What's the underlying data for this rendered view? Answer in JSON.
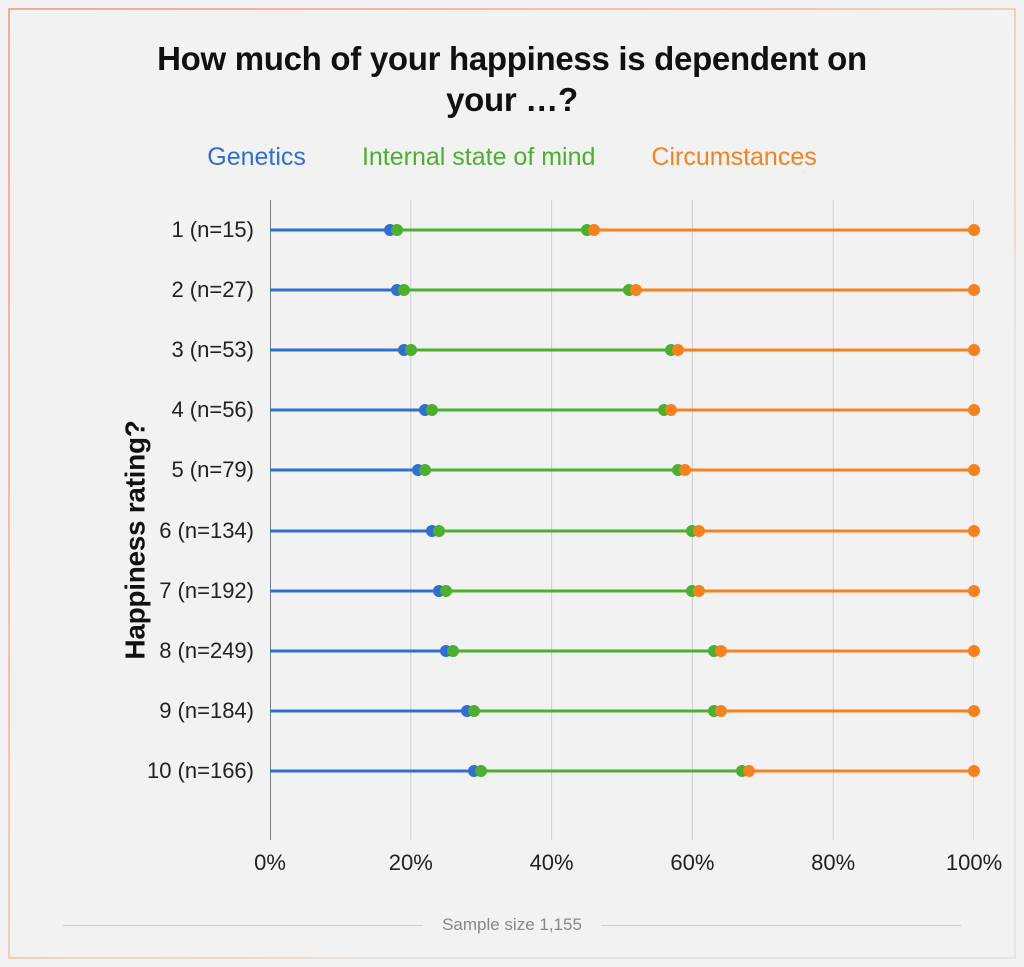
{
  "title": "How much of your happiness is dependent on your …?",
  "ylabel": "Happiness rating?",
  "sample_note": "Sample size 1,155",
  "series": [
    {
      "key": "genetics",
      "label": "Genetics",
      "color": "#2f6fd0"
    },
    {
      "key": "internal",
      "label": "Internal state of mind",
      "color": "#4caf2f"
    },
    {
      "key": "circumstances",
      "label": "Circumstances",
      "color": "#f58220"
    }
  ],
  "xaxis": {
    "min": 0,
    "max": 100,
    "ticks": [
      0,
      20,
      40,
      60,
      80,
      100
    ],
    "tick_labels": [
      "0%",
      "20%",
      "40%",
      "60%",
      "80%",
      "100%"
    ]
  },
  "rows": [
    {
      "label": "1 (n=15)",
      "n": 15,
      "rating": 1,
      "cum": [
        17,
        45,
        100
      ]
    },
    {
      "label": "2 (n=27)",
      "n": 27,
      "rating": 2,
      "cum": [
        18,
        51,
        100
      ]
    },
    {
      "label": "3 (n=53)",
      "n": 53,
      "rating": 3,
      "cum": [
        19,
        57,
        100
      ]
    },
    {
      "label": "4 (n=56)",
      "n": 56,
      "rating": 4,
      "cum": [
        22,
        56,
        100
      ]
    },
    {
      "label": "5 (n=79)",
      "n": 79,
      "rating": 5,
      "cum": [
        21,
        58,
        100
      ]
    },
    {
      "label": "6 (n=134)",
      "n": 134,
      "rating": 6,
      "cum": [
        23,
        60,
        100
      ]
    },
    {
      "label": "7 (n=192)",
      "n": 192,
      "rating": 7,
      "cum": [
        24,
        60,
        100
      ]
    },
    {
      "label": "8 (n=249)",
      "n": 249,
      "rating": 8,
      "cum": [
        25,
        63,
        100
      ]
    },
    {
      "label": "9 (n=184)",
      "n": 184,
      "rating": 9,
      "cum": [
        28,
        63,
        100
      ]
    },
    {
      "label": "10 (n=166)",
      "n": 166,
      "rating": 10,
      "cum": [
        29,
        67,
        100
      ]
    }
  ],
  "style": {
    "background": "#f2f2f2",
    "grid_color": "#cfcfcf",
    "axis_color": "#555555",
    "label_color": "#222222",
    "line_width": 3,
    "dot_radius": 6,
    "segment_gap_pct": 1.0,
    "title_fontsize": 33,
    "legend_fontsize": 25,
    "ylabel_fontsize": 28,
    "row_label_fontsize": 22,
    "tick_fontsize": 22,
    "card_border_gradient": [
      "#f7a8a0",
      "#f5c6a5",
      "#e5e5e5"
    ]
  }
}
